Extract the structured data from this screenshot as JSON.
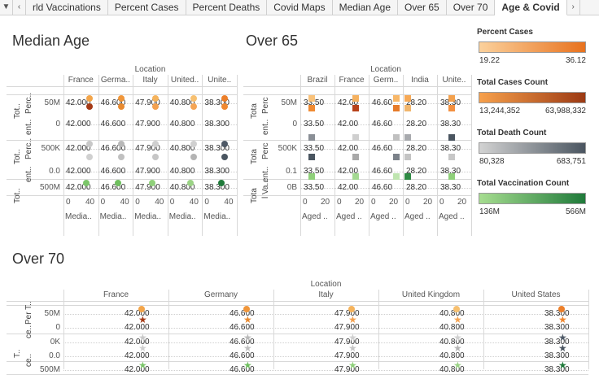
{
  "tabs": {
    "items": [
      "rld Vaccinations",
      "Percent Cases",
      "Percent Deaths",
      "Covid Maps",
      "Median Age",
      "Over 65",
      "Over 70",
      "Age & Covid"
    ],
    "active_index": 7
  },
  "median_age": {
    "title": "Median Age",
    "location_header": "Location",
    "countries": [
      "France",
      "Germa..",
      "Italy",
      "United..",
      "Unite.."
    ],
    "values": [
      "42.000",
      "46.600",
      "47.900",
      "40.800",
      "38.300"
    ],
    "row_labels": [
      {
        "outer": "Tot..",
        "inner": "Perc..",
        "tick": "50M"
      },
      {
        "outer": "",
        "inner": "ent..",
        "tick": "0"
      },
      {
        "outer": "Tot..",
        "inner": "Perc..",
        "tick": "500K"
      },
      {
        "outer": "",
        "inner": "ent..",
        "tick": "0.0"
      },
      {
        "outer": "Tot..",
        "inner": "",
        "tick": "500M"
      }
    ],
    "x_ticks": [
      "0",
      "40"
    ],
    "x_labels": [
      "Media..",
      "Media..",
      "Media..",
      "Media..",
      "Media.."
    ]
  },
  "over_65": {
    "title": "Over 65",
    "location_header": "Location",
    "countries": [
      "Brazil",
      "France",
      "Germ..",
      "India",
      "Unite.."
    ],
    "values": [
      "33.50",
      "42.00",
      "46.60",
      "28.20",
      "38.30"
    ],
    "row_labels": [
      {
        "outer": "Tota",
        "inner": "Perc",
        "tick": "50M"
      },
      {
        "outer": "",
        "inner": "ent..",
        "tick": "0"
      },
      {
        "outer": "Tota",
        "inner": "Perc",
        "tick": "500K"
      },
      {
        "outer": "",
        "inner": "ent..",
        "tick": "0.1"
      },
      {
        "outer": "Tota",
        "inner": "l Va..",
        "tick": "0B"
      }
    ],
    "x_ticks": [
      "0",
      "20"
    ],
    "x_labels": [
      "Aged ..",
      "Aged ..",
      "Aged ..",
      "Aged ..",
      "Aged .."
    ]
  },
  "over_70": {
    "title": "Over 70",
    "location_header": "Location",
    "countries": [
      "France",
      "Germany",
      "Italy",
      "United Kingdom",
      "United States"
    ],
    "values": [
      "42.000",
      "46.600",
      "47.900",
      "40.800",
      "38.300"
    ],
    "row_labels": [
      {
        "outer": "",
        "inner": "Per T..",
        "tick": "50M"
      },
      {
        "outer": "",
        "inner": "ce..",
        "tick": "0"
      },
      {
        "outer": "T..",
        "inner": "",
        "tick": "0K"
      },
      {
        "outer": "",
        "inner": "ce..",
        "tick": "0.0"
      },
      {
        "outer": "",
        "inner": "",
        "tick": "500M"
      }
    ]
  },
  "legends": [
    {
      "title": "Percent Cases",
      "min": "19.22",
      "max": "36.12",
      "from": "#fbd19c",
      "to": "#e8721e"
    },
    {
      "title": "Total Cases Count",
      "min": "13,244,352",
      "max": "63,988,332",
      "from": "#f7a04b",
      "to": "#9c3a14"
    },
    {
      "title": "Total Death Count",
      "min": "80,328",
      "max": "683,751",
      "from": "#d3d3d3",
      "to": "#4a5560"
    },
    {
      "title": "Total Vaccination Count",
      "min": "136M",
      "max": "566M",
      "from": "#a6dd90",
      "to": "#1f7a3a"
    }
  ],
  "mark_colors": {
    "percent_cases": [
      "#f3a54a",
      "#f0963a",
      "#f5b35c",
      "#f7c070",
      "#ec7f2a"
    ],
    "total_cases": [
      "#a53a16",
      "#e88a30",
      "#f3a150",
      "#f5a555",
      "#f08830"
    ],
    "death_count": [
      "#c8c8c8",
      "#b8b8b8",
      "#cfcfcf",
      "#cfcfcf",
      "#4e5966"
    ],
    "death_pct": [
      "#d0d0d0",
      "#c0c0c0",
      "#c6c6c6",
      "#b4b4b4",
      "#4a5560"
    ],
    "vaccination": [
      "#7cc66a",
      "#6fbf5f",
      "#8fd07a",
      "#9bd386",
      "#1f7a3a"
    ],
    "o65_pc": [
      "#f9c27a",
      "#f5b15f",
      "#f7b768",
      "#f6a956",
      "#f3a14e"
    ],
    "o65_tc": [
      "#f08a32",
      "#b8421a",
      "#e67b2a",
      "#f1b66d",
      "#f39040"
    ],
    "o65_dc": [
      "#8a8f96",
      "#cfcfcf",
      "#c0c0c0",
      "#a8aaae",
      "#4a5560"
    ],
    "o65_dp": [
      "#4a5560",
      "#a9a9a9",
      "#7c828a",
      "#c4c4c4",
      "#c7c7c7"
    ],
    "o65_vc": [
      "#8fd07a",
      "#a4d992",
      "#bfe5b0",
      "#2e8a44",
      "#8fd07a"
    ]
  }
}
